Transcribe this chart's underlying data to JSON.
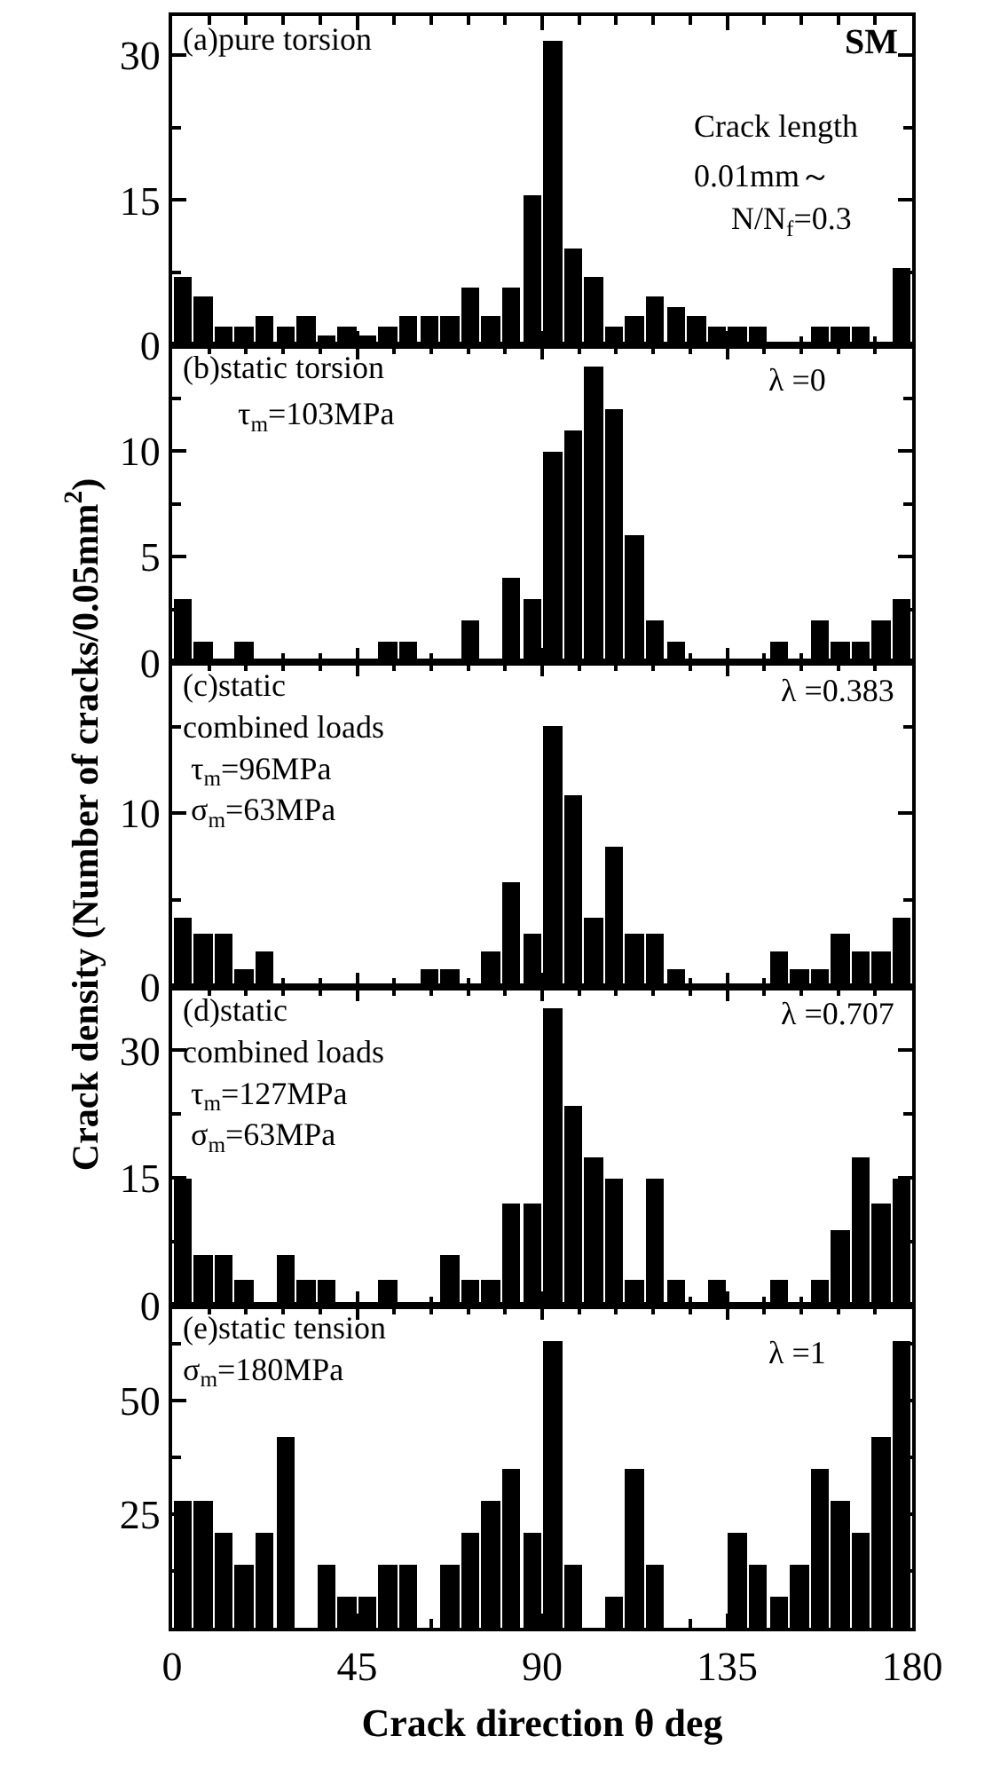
{
  "chart_data": [
    {
      "type": "histogram",
      "bins": [
        0,
        5,
        10,
        15,
        20,
        25,
        30,
        35,
        40,
        45,
        50,
        55,
        60,
        65,
        70,
        75,
        80,
        85,
        90,
        95,
        100,
        105,
        110,
        115,
        120,
        125,
        130,
        135,
        140,
        145,
        150,
        155,
        160,
        165,
        170,
        175,
        180
      ],
      "values": [
        7,
        5,
        2,
        2,
        3,
        2,
        3,
        1,
        2,
        1,
        2,
        3,
        3,
        3,
        6,
        3,
        6,
        15.5,
        31.5,
        10,
        7,
        2,
        3,
        5,
        4,
        3,
        2,
        2,
        2,
        0,
        0,
        2,
        2,
        2,
        0,
        8
      ],
      "color": "#000000",
      "xlim": [
        0,
        180
      ],
      "xticks": [
        0,
        {
          "value": 9,
          "label": null
        },
        {
          "value": 18,
          "label": null
        },
        {
          "value": 27,
          "label": null
        },
        {
          "value": 36,
          "label": null
        },
        45,
        {
          "value": 54,
          "label": null
        },
        {
          "value": 63,
          "label": null
        },
        {
          "value": 72,
          "label": null
        },
        {
          "value": 81,
          "label": null
        },
        90,
        {
          "value": 99,
          "label": null
        },
        {
          "value": 108,
          "label": null
        },
        {
          "value": 117,
          "label": null
        },
        {
          "value": 126,
          "label": null
        },
        135,
        {
          "value": 144,
          "label": null
        },
        {
          "value": 153,
          "label": null
        },
        {
          "value": 162,
          "label": null
        },
        {
          "value": 171,
          "label": null
        },
        180
      ],
      "ylim": [
        0,
        34
      ],
      "yticks": [
        0,
        {
          "value": 7.5,
          "label": null
        },
        15,
        {
          "value": 22.5,
          "label": null
        },
        30
      ],
      "tick_labels": "y",
      "annotations": [
        "(a)pure torsion",
        "SM",
        "Crack length",
        "0.01mm～",
        "N/N$_{f}$=0.3"
      ]
    },
    {
      "type": "histogram",
      "bins": [
        0,
        5,
        10,
        15,
        20,
        25,
        30,
        35,
        40,
        45,
        50,
        55,
        60,
        65,
        70,
        75,
        80,
        85,
        90,
        95,
        100,
        105,
        110,
        115,
        120,
        125,
        130,
        135,
        140,
        145,
        150,
        155,
        160,
        165,
        170,
        175,
        180
      ],
      "values": [
        3,
        1,
        0,
        1,
        0,
        0,
        0,
        0,
        0,
        0,
        1,
        1,
        0,
        0,
        2,
        0,
        4,
        3,
        10,
        11,
        14,
        12,
        6,
        2,
        1,
        0,
        0,
        0,
        0,
        1,
        0,
        2,
        1,
        1,
        2,
        3
      ],
      "color": "#000000",
      "xlim": [
        0,
        180
      ],
      "xticks": [
        0,
        {
          "value": 9,
          "label": null
        },
        {
          "value": 18,
          "label": null
        },
        {
          "value": 27,
          "label": null
        },
        {
          "value": 36,
          "label": null
        },
        45,
        {
          "value": 54,
          "label": null
        },
        {
          "value": 63,
          "label": null
        },
        {
          "value": 72,
          "label": null
        },
        {
          "value": 81,
          "label": null
        },
        90,
        {
          "value": 99,
          "label": null
        },
        {
          "value": 108,
          "label": null
        },
        {
          "value": 117,
          "label": null
        },
        {
          "value": 126,
          "label": null
        },
        135,
        {
          "value": 144,
          "label": null
        },
        {
          "value": 153,
          "label": null
        },
        {
          "value": 162,
          "label": null
        },
        {
          "value": 171,
          "label": null
        },
        180
      ],
      "ylim": [
        0,
        15
      ],
      "yticks": [
        0,
        {
          "value": 2.5,
          "label": null
        },
        5,
        {
          "value": 7.5,
          "label": null
        },
        10,
        {
          "value": 12.5,
          "label": null
        }
      ],
      "tick_labels": "y",
      "annotations": [
        "(b)static torsion",
        "τ$_{m}$=103MPa",
        "λ =0"
      ]
    },
    {
      "type": "histogram",
      "bins": [
        0,
        5,
        10,
        15,
        20,
        25,
        30,
        35,
        40,
        45,
        50,
        55,
        60,
        65,
        70,
        75,
        80,
        85,
        90,
        95,
        100,
        105,
        110,
        115,
        120,
        125,
        130,
        135,
        140,
        145,
        150,
        155,
        160,
        165,
        170,
        175,
        180
      ],
      "values": [
        4,
        3,
        3,
        1,
        2,
        0,
        0,
        0,
        0,
        0,
        0,
        0,
        1,
        1,
        0,
        2,
        6,
        3,
        15,
        11,
        4,
        8,
        3,
        3,
        1,
        0,
        0,
        0,
        0,
        2,
        1,
        1,
        3,
        2,
        2,
        4
      ],
      "color": "#000000",
      "xlim": [
        0,
        180
      ],
      "xticks": [
        0,
        {
          "value": 9,
          "label": null
        },
        {
          "value": 18,
          "label": null
        },
        {
          "value": 27,
          "label": null
        },
        {
          "value": 36,
          "label": null
        },
        45,
        {
          "value": 54,
          "label": null
        },
        {
          "value": 63,
          "label": null
        },
        {
          "value": 72,
          "label": null
        },
        {
          "value": 81,
          "label": null
        },
        90,
        {
          "value": 99,
          "label": null
        },
        {
          "value": 108,
          "label": null
        },
        {
          "value": 117,
          "label": null
        },
        {
          "value": 126,
          "label": null
        },
        135,
        {
          "value": 144,
          "label": null
        },
        {
          "value": 153,
          "label": null
        },
        {
          "value": 162,
          "label": null
        },
        {
          "value": 171,
          "label": null
        },
        180
      ],
      "ylim": [
        0,
        18.7
      ],
      "yticks": [
        0,
        {
          "value": 5,
          "label": null
        },
        10,
        {
          "value": 15,
          "label": null
        }
      ],
      "tick_labels": "y",
      "ylabel": "Crack density (Number of cracks/0.05mm$^{2}$)",
      "annotations": [
        "(c)static\ncombined loads\n τ$_{m}$=96MPa\n σ$_{m}$=63MPa",
        "λ =0.383"
      ]
    },
    {
      "type": "histogram",
      "bins": [
        0,
        5,
        10,
        15,
        20,
        25,
        30,
        35,
        40,
        45,
        50,
        55,
        60,
        65,
        70,
        75,
        80,
        85,
        90,
        95,
        100,
        105,
        110,
        115,
        120,
        125,
        130,
        135,
        140,
        145,
        150,
        155,
        160,
        165,
        170,
        175,
        180
      ],
      "values": [
        15,
        6,
        6,
        3,
        0,
        6,
        3,
        3,
        0,
        0,
        3,
        0,
        0,
        6,
        3,
        3,
        12,
        12,
        35,
        23.5,
        17.5,
        15,
        3,
        15,
        3,
        0,
        3,
        0,
        0,
        3,
        0,
        3,
        9,
        17.5,
        12,
        15
      ],
      "color": "#000000",
      "xlim": [
        0,
        180
      ],
      "xticks": [
        0,
        {
          "value": 9,
          "label": null
        },
        {
          "value": 18,
          "label": null
        },
        {
          "value": 27,
          "label": null
        },
        {
          "value": 36,
          "label": null
        },
        45,
        {
          "value": 54,
          "label": null
        },
        {
          "value": 63,
          "label": null
        },
        {
          "value": 72,
          "label": null
        },
        {
          "value": 81,
          "label": null
        },
        90,
        {
          "value": 99,
          "label": null
        },
        {
          "value": 108,
          "label": null
        },
        {
          "value": 117,
          "label": null
        },
        {
          "value": 126,
          "label": null
        },
        135,
        {
          "value": 144,
          "label": null
        },
        {
          "value": 153,
          "label": null
        },
        {
          "value": 162,
          "label": null
        },
        {
          "value": 171,
          "label": null
        },
        180
      ],
      "ylim": [
        0,
        37.5
      ],
      "yticks": [
        0,
        {
          "value": 7.5,
          "label": null
        },
        15,
        {
          "value": 22.5,
          "label": null
        },
        30
      ],
      "tick_labels": "y",
      "annotations": [
        "(d)static\ncombined loads\n τ$_{m}$=127MPa\n σ$_{m}$=63MPa",
        "λ =0.707"
      ]
    },
    {
      "type": "histogram",
      "bins": [
        0,
        5,
        10,
        15,
        20,
        25,
        30,
        35,
        40,
        45,
        50,
        55,
        60,
        65,
        70,
        75,
        80,
        85,
        90,
        95,
        100,
        105,
        110,
        115,
        120,
        125,
        130,
        135,
        140,
        145,
        150,
        155,
        160,
        165,
        170,
        175,
        180
      ],
      "values": [
        28,
        28,
        21,
        14,
        21,
        42,
        0,
        14,
        7,
        7,
        14,
        14,
        0,
        14,
        21,
        28,
        35,
        21,
        63,
        14,
        0,
        7,
        35,
        14,
        0,
        0,
        0,
        21,
        14,
        7,
        14,
        35,
        28,
        21,
        42,
        63
      ],
      "color": "#000000",
      "xlim": [
        0,
        180
      ],
      "xticks": [
        0,
        {
          "value": 9,
          "label": null
        },
        {
          "value": 18,
          "label": null
        },
        {
          "value": 27,
          "label": null
        },
        {
          "value": 36,
          "label": null
        },
        45,
        {
          "value": 54,
          "label": null
        },
        {
          "value": 63,
          "label": null
        },
        {
          "value": 72,
          "label": null
        },
        {
          "value": 81,
          "label": null
        },
        90,
        {
          "value": 99,
          "label": null
        },
        {
          "value": 108,
          "label": null
        },
        {
          "value": 117,
          "label": null
        },
        {
          "value": 126,
          "label": null
        },
        135,
        {
          "value": 144,
          "label": null
        },
        {
          "value": 153,
          "label": null
        },
        {
          "value": 162,
          "label": null
        },
        {
          "value": 171,
          "label": null
        },
        180
      ],
      "ylim": [
        0,
        71
      ],
      "yticks": [
        {
          "value": 0,
          "label": null
        },
        {
          "value": 12.5,
          "label": null
        },
        25,
        {
          "value": 37.5,
          "label": null
        },
        50,
        {
          "value": 62.5,
          "label": null
        }
      ],
      "xlabel": "Crack direction θ deg",
      "annotations": [
        "(e)static tension\nσ$_{m}$=180MPa",
        "λ =1"
      ]
    }
  ]
}
